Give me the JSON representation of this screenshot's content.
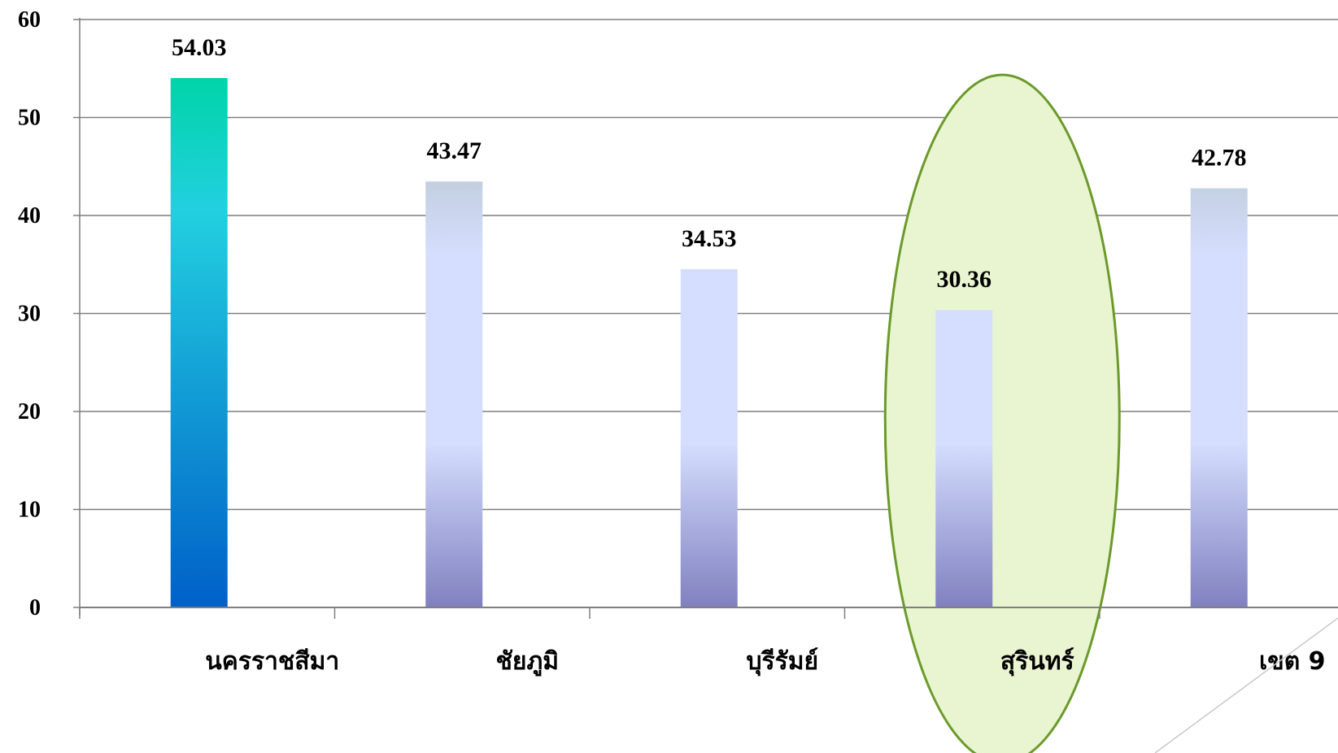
{
  "chart_data": {
    "type": "bar",
    "title": "",
    "xlabel": "",
    "ylabel": "",
    "categories": [
      "นครราชสีมา",
      "ชัยภูมิ",
      "บุรีรัมย์",
      "สุรินทร์",
      "เขต 9"
    ],
    "values": [
      54.03,
      43.47,
      34.53,
      30.36,
      42.78
    ],
    "value_labels": [
      "54.03",
      "43.47",
      "34.53",
      "30.36",
      "42.78"
    ],
    "ylim": [
      0,
      60
    ],
    "yticks": [
      0,
      10,
      20,
      30,
      40,
      50,
      60
    ],
    "grid": true,
    "legend": "none",
    "highlighted_category": "สุรินทร์",
    "colors": {
      "first_bar_top": "#00d4a8",
      "first_bar_mid": "#22d0e0",
      "first_bar_bottom": "#0060c8",
      "bar_top": "#95ab95",
      "bar_mid": "#d5defe",
      "bar_bottom": "#8080c0",
      "highlight_fill": "#e8f5d0",
      "highlight_stroke": "#6b9a2a",
      "grid": "#7f7f7f"
    }
  }
}
